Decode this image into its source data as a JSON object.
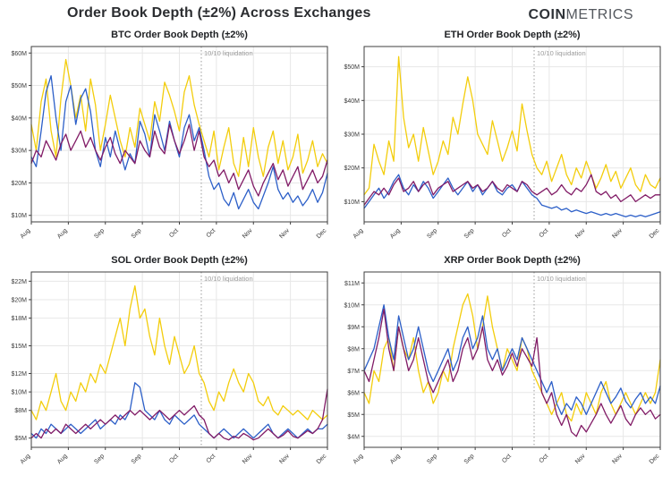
{
  "header": {
    "title": "Order Book Depth (±2%) Across Exchanges",
    "logo": {
      "bold": "COIN",
      "light": "METRICS"
    }
  },
  "annotation_label": "10/10 liquidation",
  "colors": {
    "grid": "#e7e7e7",
    "plot_border": "#3f3f3f",
    "tick_text": "#3c3c3c",
    "annotation": "#9b9b9b",
    "series_yellow": "#F3CD0C",
    "series_blue": "#2C5FC8",
    "series_purple": "#811B66"
  },
  "chart_data": [
    {
      "id": "btc",
      "type": "line",
      "title": "BTC Order Book Depth (±2%)",
      "x_ticks": [
        "Aug",
        "Aug",
        "Sep",
        "Sep",
        "Oct",
        "Oct",
        "Nov",
        "Nov",
        "Dec"
      ],
      "y_ticks": [
        {
          "v": 10,
          "label": "$10M"
        },
        {
          "v": 20,
          "label": "$20M"
        },
        {
          "v": 30,
          "label": "$30M"
        },
        {
          "v": 40,
          "label": "$40M"
        },
        {
          "v": 50,
          "label": "$50M"
        },
        {
          "v": 60,
          "label": "$60M"
        }
      ],
      "ylim": [
        8,
        62
      ],
      "annotation_x_frac": 0.574,
      "grid": true,
      "legend": "none",
      "series": [
        {
          "color": "#F3CD0C",
          "values": [
            38,
            30,
            45,
            52,
            36,
            28,
            46,
            58,
            50,
            40,
            47,
            36,
            52,
            44,
            30,
            38,
            47,
            40,
            33,
            28,
            37,
            31,
            43,
            38,
            33,
            45,
            39,
            51,
            47,
            42,
            36,
            48,
            53,
            44,
            38,
            33,
            28,
            36,
            24,
            31,
            37,
            26,
            22,
            34,
            25,
            37,
            28,
            22,
            31,
            36,
            26,
            33,
            24,
            28,
            35,
            23,
            27,
            33,
            25,
            29,
            26
          ]
        },
        {
          "color": "#2C5FC8",
          "values": [
            28,
            25,
            36,
            48,
            53,
            40,
            30,
            45,
            50,
            38,
            46,
            49,
            42,
            30,
            25,
            34,
            28,
            36,
            30,
            24,
            29,
            26,
            39,
            35,
            28,
            41,
            36,
            30,
            39,
            33,
            28,
            37,
            41,
            33,
            37,
            30,
            22,
            18,
            20,
            15,
            13,
            17,
            12,
            15,
            18,
            14,
            12,
            16,
            20,
            25,
            18,
            15,
            17,
            14,
            16,
            13,
            15,
            18,
            14,
            17,
            23
          ]
        },
        {
          "color": "#811B66",
          "values": [
            26,
            30,
            28,
            33,
            30,
            27,
            32,
            35,
            30,
            33,
            36,
            31,
            34,
            30,
            27,
            31,
            34,
            29,
            26,
            30,
            28,
            26,
            33,
            30,
            28,
            36,
            31,
            29,
            38,
            33,
            29,
            33,
            38,
            30,
            36,
            28,
            25,
            27,
            22,
            24,
            20,
            23,
            18,
            21,
            24,
            19,
            16,
            20,
            23,
            26,
            21,
            24,
            19,
            22,
            25,
            18,
            21,
            24,
            20,
            22,
            27
          ]
        }
      ]
    },
    {
      "id": "eth",
      "type": "line",
      "title": "ETH Order Book Depth (±2%)",
      "x_ticks": [
        "Aug",
        "Aug",
        "Sep",
        "Sep",
        "Oct",
        "Oct",
        "Nov",
        "Nov",
        "Dec"
      ],
      "y_ticks": [
        {
          "v": 10,
          "label": "$10M"
        },
        {
          "v": 20,
          "label": "$20M"
        },
        {
          "v": 30,
          "label": "$30M"
        },
        {
          "v": 40,
          "label": "$40M"
        },
        {
          "v": 50,
          "label": "$50M"
        }
      ],
      "ylim": [
        4,
        56
      ],
      "annotation_x_frac": 0.574,
      "grid": true,
      "legend": "none",
      "series": [
        {
          "color": "#F3CD0C",
          "values": [
            12,
            14,
            27,
            22,
            18,
            28,
            22,
            53,
            35,
            26,
            30,
            22,
            32,
            25,
            18,
            22,
            28,
            24,
            35,
            30,
            39,
            47,
            40,
            30,
            27,
            24,
            34,
            28,
            22,
            26,
            31,
            25,
            39,
            31,
            24,
            20,
            18,
            22,
            16,
            20,
            24,
            18,
            15,
            20,
            17,
            22,
            18,
            14,
            17,
            21,
            16,
            19,
            14,
            17,
            20,
            15,
            13,
            18,
            15,
            14,
            17
          ]
        },
        {
          "color": "#2C5FC8",
          "values": [
            8,
            10,
            12,
            14,
            11,
            13,
            16,
            18,
            14,
            12,
            15,
            13,
            16,
            14,
            11,
            13,
            15,
            17,
            14,
            12,
            14,
            16,
            13,
            15,
            12,
            14,
            16,
            13,
            12,
            14,
            15,
            13,
            16,
            14,
            12,
            11,
            9,
            8.5,
            8,
            8.5,
            7.5,
            8,
            7,
            7.5,
            7,
            6.5,
            7,
            6.5,
            6,
            6.5,
            6,
            6.5,
            6,
            5.5,
            6,
            5.5,
            6,
            5.5,
            6,
            6.5,
            7
          ]
        },
        {
          "color": "#811B66",
          "values": [
            9,
            11,
            13,
            12,
            14,
            12,
            15,
            17,
            13,
            14,
            16,
            13,
            15,
            16,
            12,
            14,
            15,
            16,
            13,
            14,
            15,
            16,
            14,
            15,
            13,
            14,
            16,
            14,
            13,
            15,
            14,
            13,
            16,
            15,
            13,
            12,
            13,
            14,
            12,
            13,
            15,
            13,
            12,
            14,
            13,
            15,
            18,
            13,
            12,
            13,
            11,
            12,
            10,
            11,
            12,
            10,
            11,
            12,
            11,
            12,
            12
          ]
        }
      ]
    },
    {
      "id": "sol",
      "type": "line",
      "title": "SOL Order Book Depth (±2%)",
      "x_ticks": [
        "Aug",
        "Aug",
        "Sep",
        "Sep",
        "Oct",
        "Oct",
        "Nov",
        "Nov",
        "Dec"
      ],
      "y_ticks": [
        {
          "v": 5,
          "label": "$5M"
        },
        {
          "v": 8,
          "label": "$8M"
        },
        {
          "v": 10,
          "label": "$10M"
        },
        {
          "v": 12,
          "label": "$12M"
        },
        {
          "v": 15,
          "label": "$15M"
        },
        {
          "v": 18,
          "label": "$18M"
        },
        {
          "v": 20,
          "label": "$20M"
        },
        {
          "v": 22,
          "label": "$22M"
        }
      ],
      "ylim": [
        4,
        23
      ],
      "annotation_x_frac": 0.574,
      "grid": true,
      "legend": "none",
      "series": [
        {
          "color": "#F3CD0C",
          "values": [
            8,
            7,
            9,
            8,
            10,
            12,
            9,
            8,
            10,
            9,
            11,
            10,
            12,
            11,
            13,
            12,
            14,
            16,
            18,
            15,
            19,
            21.5,
            18,
            19,
            16,
            14,
            18,
            15,
            13,
            16,
            14,
            12,
            13,
            15,
            12,
            11,
            9,
            8,
            10,
            9,
            11,
            12.5,
            11,
            10,
            12,
            11,
            9,
            8.5,
            9.5,
            8,
            7.5,
            8.5,
            8,
            7.5,
            8,
            7.5,
            7,
            8,
            7.5,
            7,
            7.5
          ]
        },
        {
          "color": "#2C5FC8",
          "values": [
            5.5,
            5,
            6,
            5.5,
            6.5,
            6,
            5.5,
            6,
            6.5,
            6,
            5.5,
            6,
            6.5,
            7,
            6,
            6.5,
            7,
            6.5,
            7.5,
            7,
            8,
            11,
            10.5,
            8,
            7.5,
            7,
            8,
            7,
            6.5,
            7.5,
            7,
            6.5,
            7,
            7.5,
            6.5,
            6,
            5.5,
            5,
            5.5,
            6,
            5.5,
            5,
            5.5,
            6,
            5.5,
            5,
            5.5,
            6,
            6.5,
            5.5,
            5,
            5.5,
            6,
            5.5,
            5,
            5.5,
            6,
            5.5,
            6,
            6,
            6.5
          ]
        },
        {
          "color": "#811B66",
          "values": [
            5,
            5.5,
            5,
            6,
            5.5,
            6,
            5.5,
            6.5,
            6,
            5.5,
            6,
            6.5,
            6,
            6.5,
            7,
            6.5,
            7,
            7.5,
            7,
            7.5,
            8,
            7.5,
            8,
            7.5,
            7,
            7.5,
            8,
            7.5,
            7,
            7.5,
            8,
            7.5,
            8,
            8.5,
            7.5,
            7,
            5.5,
            5,
            5.5,
            5,
            4.8,
            5.2,
            5,
            5.5,
            5.2,
            4.8,
            5,
            5.5,
            6,
            5.5,
            5,
            5.3,
            5.8,
            5.2,
            5,
            5.4,
            5.8,
            5.5,
            6,
            7,
            10.3
          ]
        }
      ]
    },
    {
      "id": "xrp",
      "type": "line",
      "title": "XRP Order Book Depth (±2%)",
      "x_ticks": [
        "Aug",
        "Aug",
        "Sep",
        "Sep",
        "Oct",
        "Oct",
        "Nov",
        "Nov",
        "Dec"
      ],
      "y_ticks": [
        {
          "v": 4,
          "label": "$4M"
        },
        {
          "v": 5,
          "label": "$5M"
        },
        {
          "v": 6,
          "label": "$6M"
        },
        {
          "v": 7,
          "label": "$7M"
        },
        {
          "v": 8,
          "label": "$8M"
        },
        {
          "v": 9,
          "label": "$9M"
        },
        {
          "v": 10,
          "label": "$10M"
        },
        {
          "v": 11,
          "label": "$11M"
        }
      ],
      "ylim": [
        3.5,
        11.5
      ],
      "annotation_x_frac": 0.574,
      "grid": true,
      "legend": "none",
      "series": [
        {
          "color": "#F3CD0C",
          "values": [
            6,
            5.5,
            7,
            6.5,
            8,
            8.5,
            7,
            9,
            8,
            7.5,
            8.5,
            7,
            6,
            6.5,
            5.5,
            6,
            7,
            6.5,
            8,
            9,
            10,
            10.5,
            9.5,
            8,
            9,
            10.4,
            9,
            8,
            7,
            8,
            7.5,
            7,
            8.5,
            8,
            7,
            6.5,
            6,
            5.5,
            5,
            5.5,
            6,
            5,
            4.7,
            5.5,
            5,
            6,
            5.5,
            5,
            6,
            6.5,
            5.5,
            5,
            5.5,
            6,
            5.5,
            5,
            5.5,
            6,
            5.5,
            6,
            7.5
          ]
        },
        {
          "color": "#2C5FC8",
          "values": [
            7,
            7.5,
            8,
            9,
            10,
            8.5,
            7.5,
            9.5,
            8.5,
            7.5,
            8,
            9,
            8,
            7,
            6.5,
            7,
            7.5,
            8,
            7,
            7.5,
            8.5,
            9,
            8,
            8.5,
            9.5,
            8,
            7.5,
            8,
            7,
            7.5,
            8,
            7.5,
            8.5,
            8,
            7.5,
            7,
            6.5,
            6,
            6.5,
            5.5,
            5,
            5.5,
            5.2,
            5.8,
            5.5,
            5,
            5.5,
            6,
            6.5,
            6,
            5.5,
            5.8,
            6.2,
            5.6,
            5.3,
            5.7,
            6,
            5.5,
            5.8,
            5.5,
            6.3
          ]
        },
        {
          "color": "#811B66",
          "values": [
            7,
            6.5,
            7.5,
            8.5,
            9.8,
            8,
            7,
            9,
            8,
            7,
            7.5,
            8.5,
            7.5,
            6.5,
            6,
            6.5,
            7,
            7.5,
            6.5,
            7,
            8,
            8.5,
            7.5,
            8,
            9,
            7.5,
            7,
            7.5,
            6.8,
            7.2,
            7.8,
            7.2,
            8,
            7.6,
            7.2,
            8.5,
            6,
            5.5,
            6,
            5,
            4.5,
            5,
            4.2,
            4,
            4.5,
            4.2,
            4.6,
            5,
            5.5,
            5,
            4.6,
            5,
            5.4,
            4.8,
            4.5,
            5,
            5.3,
            5,
            5.2,
            4.8,
            5
          ]
        }
      ]
    }
  ]
}
